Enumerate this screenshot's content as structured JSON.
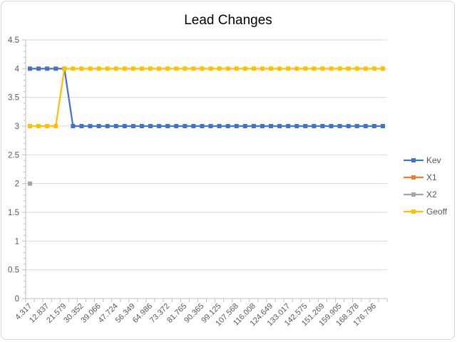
{
  "chart_data": {
    "type": "line",
    "title": "Lead Changes",
    "ylim": [
      0,
      4.5
    ],
    "y_ticks": [
      "0",
      "0.5",
      "1",
      "1.5",
      "2",
      "2.5",
      "3",
      "3.5",
      "4",
      "4.5"
    ],
    "x_tick_labels": [
      "4.317",
      "12.837",
      "21.579",
      "30.352",
      "39.066",
      "47.724",
      "56.349",
      "64.986",
      "73.372",
      "81.765",
      "90.365",
      "99.125",
      "107.568",
      "116.008",
      "124.649",
      "133.017",
      "142.575",
      "151.269",
      "159.905",
      "168.378",
      "176.796"
    ],
    "x_count": 42,
    "grid": true,
    "legend_position": "right",
    "series": [
      {
        "name": "Kev",
        "color": "#4472C4",
        "values": [
          4,
          4,
          4,
          4,
          4,
          3,
          3,
          3,
          3,
          3,
          3,
          3,
          3,
          3,
          3,
          3,
          3,
          3,
          3,
          3,
          3,
          3,
          3,
          3,
          3,
          3,
          3,
          3,
          3,
          3,
          3,
          3,
          3,
          3,
          3,
          3,
          3,
          3,
          3,
          3,
          3,
          3
        ]
      },
      {
        "name": "X1",
        "color": "#ED7D31",
        "values": []
      },
      {
        "name": "X2",
        "color": "#A5A5A5",
        "values": [
          2
        ]
      },
      {
        "name": "Geoff",
        "color": "#FFC000",
        "values": [
          3,
          3,
          3,
          3,
          4,
          4,
          4,
          4,
          4,
          4,
          4,
          4,
          4,
          4,
          4,
          4,
          4,
          4,
          4,
          4,
          4,
          4,
          4,
          4,
          4,
          4,
          4,
          4,
          4,
          4,
          4,
          4,
          4,
          4,
          4,
          4,
          4,
          4,
          4,
          4,
          4,
          4
        ]
      }
    ]
  }
}
